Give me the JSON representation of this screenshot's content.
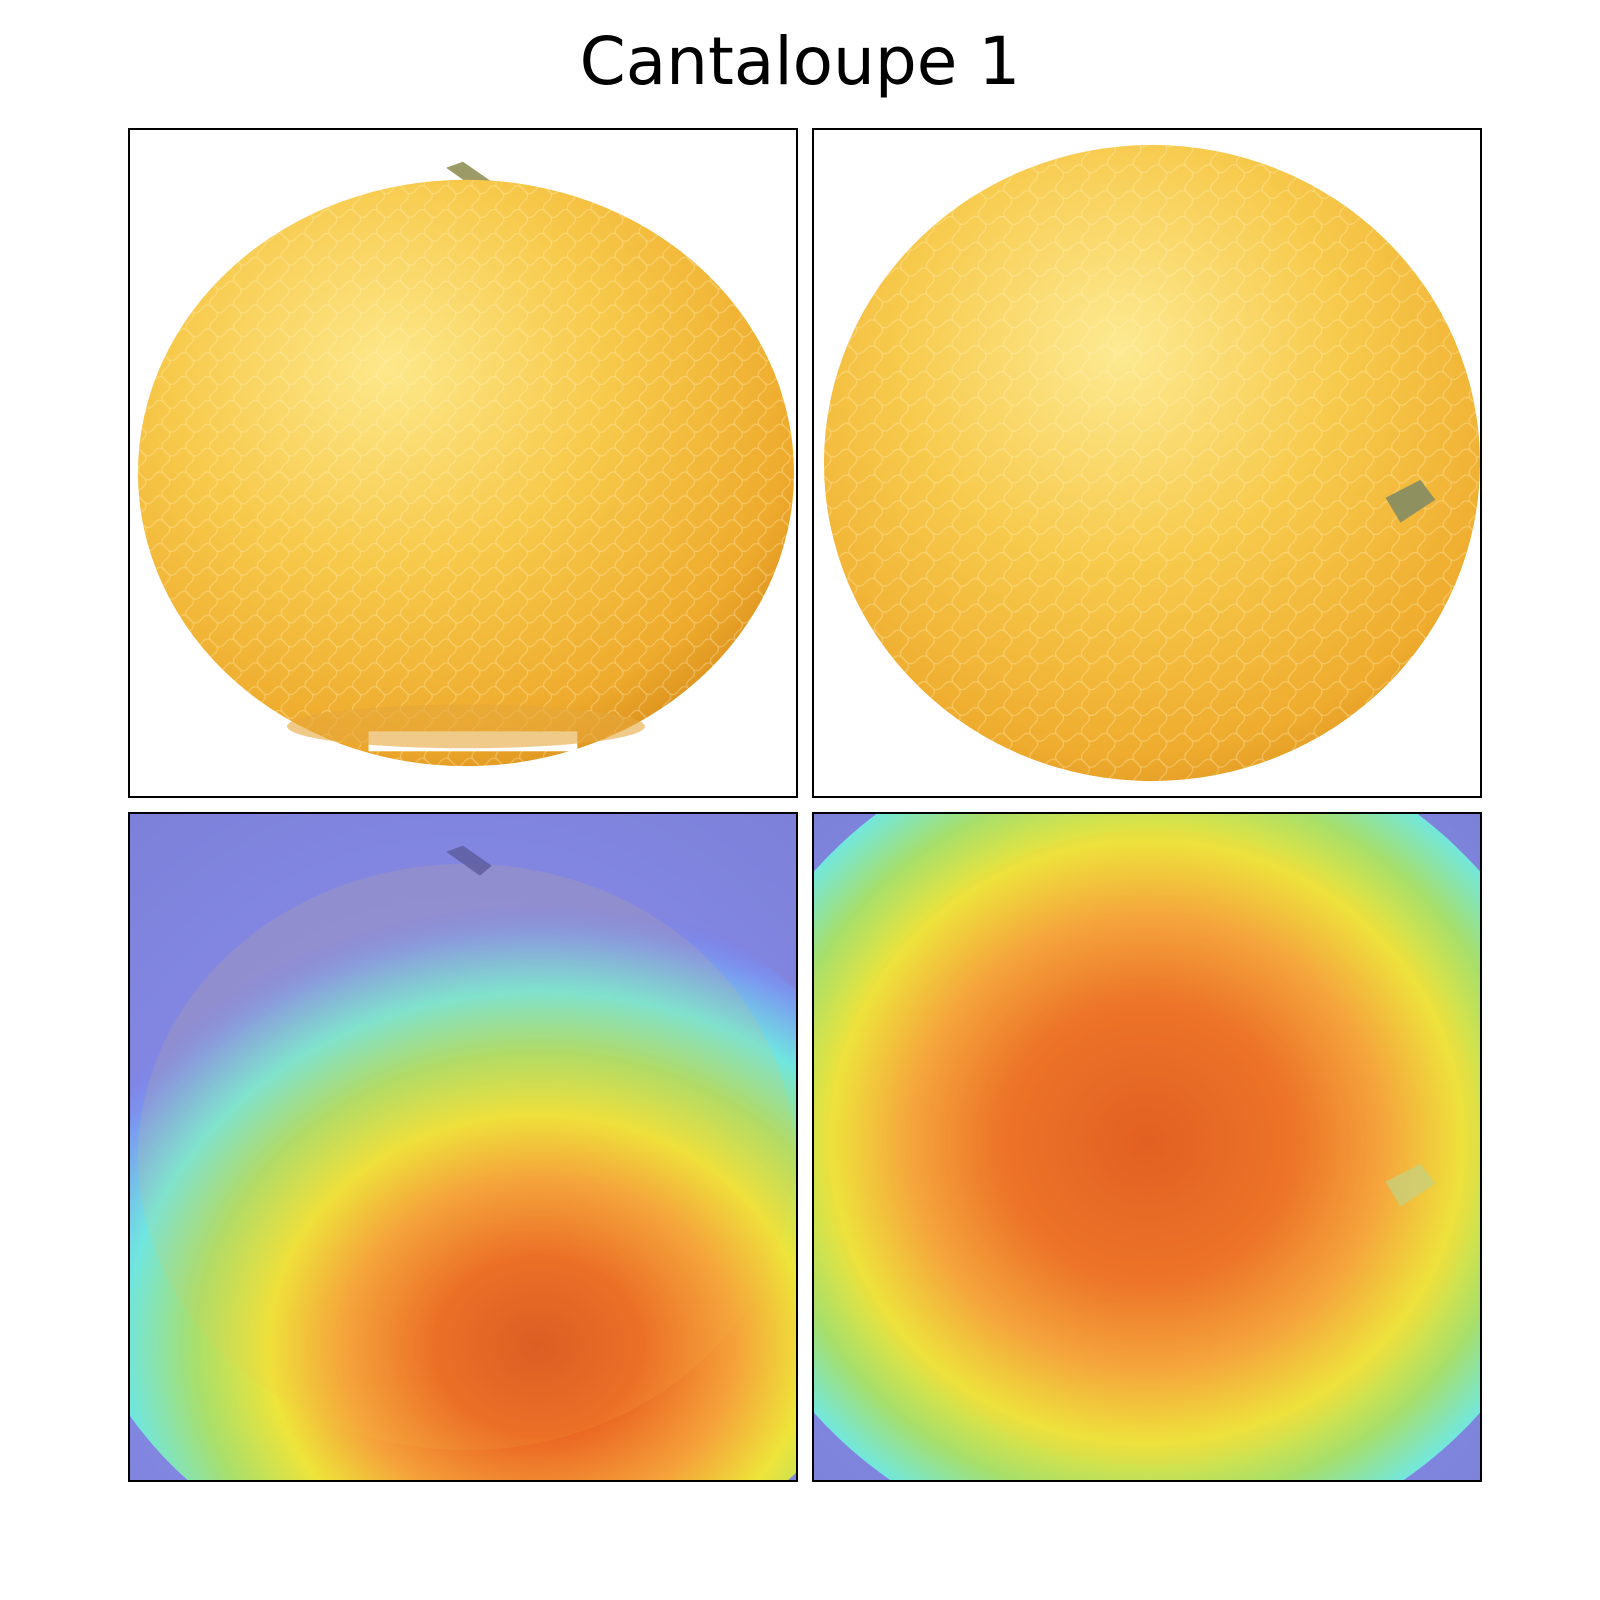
{
  "figure": {
    "title": "Cantaloupe 1"
  },
  "panels": [
    {
      "name": "original-image-left",
      "kind": "photo"
    },
    {
      "name": "original-image-right",
      "kind": "photo"
    },
    {
      "name": "heatmap-overlay-left",
      "kind": "heatmap-overlay"
    },
    {
      "name": "heatmap-overlay-right",
      "kind": "heatmap-overlay"
    }
  ],
  "colors": {
    "melon_light": "#fde27a",
    "melon_mid": "#f5bd3a",
    "melon_dark": "#d88f1e",
    "stem": "#8d8a5a",
    "heat_low": "#7a7ef0",
    "heat_cyan": "#6fe9e6",
    "heat_green": "#a7e068",
    "heat_yellow": "#f0e83a",
    "heat_orange": "#f5a23a",
    "heat_red": "#e8521e"
  }
}
